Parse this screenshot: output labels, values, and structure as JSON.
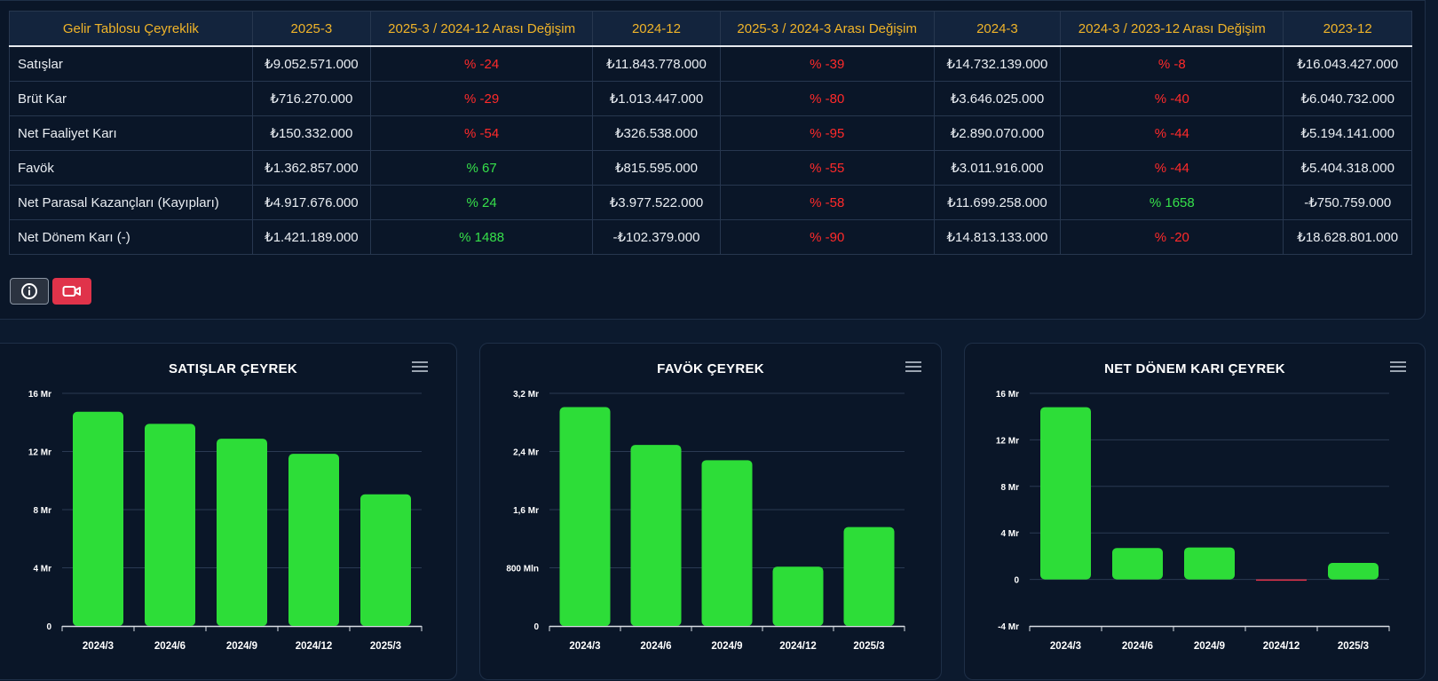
{
  "table": {
    "headers": [
      "Gelir Tablosu Çeyreklik",
      "2025-3",
      "2025-3 / 2024-12 Arası Değişim",
      "2024-12",
      "2025-3 / 2024-3 Arası Değişim",
      "2024-3",
      "2024-3 / 2023-12 Arası Değişim",
      "2023-12"
    ],
    "rows": [
      {
        "label": "Satışlar",
        "cells": [
          "₺9.052.571.000",
          "% -24",
          "₺11.843.778.000",
          "% -39",
          "₺14.732.139.000",
          "% -8",
          "₺16.043.427.000"
        ],
        "signs": [
          "",
          "neg",
          "",
          "neg",
          "",
          "neg",
          ""
        ]
      },
      {
        "label": "Brüt Kar",
        "cells": [
          "₺716.270.000",
          "% -29",
          "₺1.013.447.000",
          "% -80",
          "₺3.646.025.000",
          "% -40",
          "₺6.040.732.000"
        ],
        "signs": [
          "",
          "neg",
          "",
          "neg",
          "",
          "neg",
          ""
        ]
      },
      {
        "label": "Net Faaliyet Karı",
        "cells": [
          "₺150.332.000",
          "% -54",
          "₺326.538.000",
          "% -95",
          "₺2.890.070.000",
          "% -44",
          "₺5.194.141.000"
        ],
        "signs": [
          "",
          "neg",
          "",
          "neg",
          "",
          "neg",
          ""
        ]
      },
      {
        "label": "Favök",
        "cells": [
          "₺1.362.857.000",
          "% 67",
          "₺815.595.000",
          "% -55",
          "₺3.011.916.000",
          "% -44",
          "₺5.404.318.000"
        ],
        "signs": [
          "",
          "pos",
          "",
          "neg",
          "",
          "neg",
          ""
        ]
      },
      {
        "label": "Net Parasal Kazançları (Kayıpları)",
        "cells": [
          "₺4.917.676.000",
          "% 24",
          "₺3.977.522.000",
          "% -58",
          "₺11.699.258.000",
          "% 1658",
          "-₺750.759.000"
        ],
        "signs": [
          "",
          "pos",
          "",
          "neg",
          "",
          "pos",
          ""
        ]
      },
      {
        "label": "Net Dönem Karı (-)",
        "cells": [
          "₺1.421.189.000",
          "% 1488",
          "-₺102.379.000",
          "% -90",
          "₺14.813.133.000",
          "% -20",
          "₺18.628.801.000"
        ],
        "signs": [
          "",
          "pos",
          "",
          "neg",
          "",
          "neg",
          ""
        ]
      }
    ]
  },
  "buttons": {
    "info_icon": "info-circle-icon",
    "video_icon": "video-camera-icon"
  },
  "colors": {
    "positive": "#36e04a",
    "negative": "#ff2a2a",
    "header": "#f0b429",
    "bar": "#2ddd38",
    "bar_negative": "#e0334a"
  },
  "chart_data": [
    {
      "type": "bar",
      "title": "SATIŞLAR ÇEYREK",
      "categories": [
        "2024/3",
        "2024/6",
        "2024/9",
        "2024/12",
        "2025/3"
      ],
      "values": [
        14.73,
        13.9,
        12.88,
        11.84,
        9.05
      ],
      "unit": "Mr",
      "ylim": [
        0,
        16
      ],
      "ticks": [
        {
          "v": 0,
          "label": "0"
        },
        {
          "v": 4,
          "label": "4 Mr"
        },
        {
          "v": 8,
          "label": "8 Mr"
        },
        {
          "v": 12,
          "label": "12 Mr"
        },
        {
          "v": 16,
          "label": "16 Mr"
        }
      ],
      "grid": true
    },
    {
      "type": "bar",
      "title": "FAVÖK ÇEYREK",
      "categories": [
        "2024/3",
        "2024/6",
        "2024/9",
        "2024/12",
        "2025/3"
      ],
      "values": [
        3.01,
        2.49,
        2.28,
        0.816,
        1.36
      ],
      "unit": "Mr",
      "ylim": [
        0,
        3.2
      ],
      "ticks": [
        {
          "v": 0,
          "label": "0"
        },
        {
          "v": 0.8,
          "label": "800 Mln"
        },
        {
          "v": 1.6,
          "label": "1,6 Mr"
        },
        {
          "v": 2.4,
          "label": "2,4 Mr"
        },
        {
          "v": 3.2,
          "label": "3,2 Mr"
        }
      ],
      "grid": true
    },
    {
      "type": "bar",
      "title": "NET DÖNEM KARI ÇEYREK",
      "categories": [
        "2024/3",
        "2024/6",
        "2024/9",
        "2024/12",
        "2025/3"
      ],
      "values": [
        14.81,
        2.7,
        2.75,
        -0.102,
        1.42
      ],
      "unit": "Mr",
      "ylim": [
        -4,
        16
      ],
      "ticks": [
        {
          "v": -4,
          "label": "-4 Mr"
        },
        {
          "v": 0,
          "label": "0"
        },
        {
          "v": 4,
          "label": "4 Mr"
        },
        {
          "v": 8,
          "label": "8 Mr"
        },
        {
          "v": 12,
          "label": "12 Mr"
        },
        {
          "v": 16,
          "label": "16 Mr"
        }
      ],
      "grid": true
    }
  ]
}
